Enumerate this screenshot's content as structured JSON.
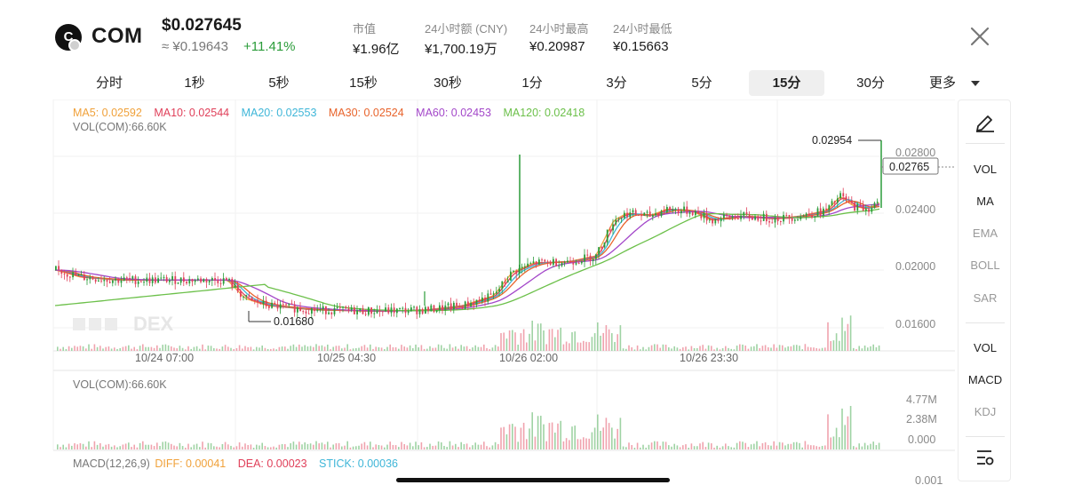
{
  "header": {
    "logo_letter": "C",
    "symbol": "COM",
    "price_usd": "$0.027645",
    "price_cny": "≈ ¥0.19643",
    "change": "+11.41%",
    "stats": [
      {
        "label": "市值",
        "value": "¥1.96亿"
      },
      {
        "label": "24小时额 (CNY)",
        "value": "¥1,700.19万"
      },
      {
        "label": "24小时最高",
        "value": "¥0.20987"
      },
      {
        "label": "24小时最低",
        "value": "¥0.15663"
      }
    ],
    "close_icon": "close-icon"
  },
  "tabs": [
    "分时",
    "1秒",
    "5秒",
    "15秒",
    "30秒",
    "1分",
    "3分",
    "5分",
    "15分",
    "30分",
    "更多"
  ],
  "active_tab": "15分",
  "main_chart": {
    "ma_legend": [
      {
        "label": "MA5: 0.02592",
        "color": "#f0a13a"
      },
      {
        "label": "MA10: 0.02544",
        "color": "#e0405a"
      },
      {
        "label": "MA20: 0.02553",
        "color": "#3fb6d8"
      },
      {
        "label": "MA30: 0.02524",
        "color": "#e8632b"
      },
      {
        "label": "MA60: 0.02453",
        "color": "#a347c9"
      },
      {
        "label": "MA120: 0.02418",
        "color": "#6cc04a"
      }
    ],
    "vol_label": "VOL(COM):66.60K",
    "y_ticks": [
      "0.02800",
      "0.02400",
      "0.02000",
      "0.01600"
    ],
    "current_price": "0.02765",
    "high_marker": "0.02954",
    "low_marker": "0.01680",
    "x_ticks": [
      "10/24 07:00",
      "10/25 04:30",
      "10/26 02:00",
      "10/26 23:30"
    ],
    "watermark": "DEX"
  },
  "volume_pane": {
    "label": "VOL(COM):66.60K",
    "y_ticks": [
      "4.77M",
      "2.38M",
      "0.000"
    ]
  },
  "macd_pane": {
    "title": "MACD(12,26,9)",
    "diff": "DIFF: 0.00041",
    "dea": "DEA: 0.00023",
    "stick": "STICK: 0.00036",
    "partial_tick": "0.001"
  },
  "toolbar": {
    "draw_icon": "pen-icon",
    "items_main": [
      "VOL",
      "MA",
      "EMA",
      "BOLL",
      "SAR"
    ],
    "items_sub": [
      "VOL",
      "MACD",
      "KDJ"
    ],
    "settings_icon": "settings-list-icon"
  },
  "colors": {
    "up": "#2b9c3a",
    "down": "#e0405a",
    "ma5": "#f0a13a",
    "ma10": "#e0405a",
    "ma20": "#3fb6d8",
    "ma30": "#e8632b",
    "ma60": "#a347c9",
    "ma120": "#6cc04a"
  }
}
